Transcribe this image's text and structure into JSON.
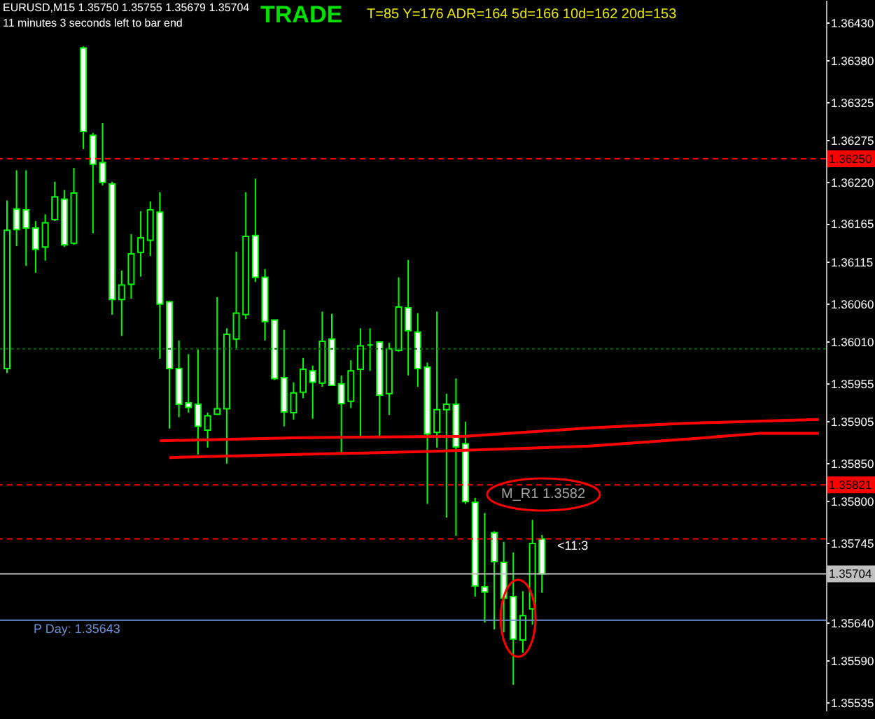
{
  "chart_data": {
    "type": "candlestick",
    "title": "EURUSD,M15  1.35750 1.35755 1.35679 1.35704",
    "subtitle": "11 minutes 3 seconds left to bar end",
    "annotations": [
      "TRADE",
      "T=85  Y=176  ADR=164  5d=166  10d=162  20d=153",
      "M_R1 1.3582",
      "<11:3"
    ],
    "color": "#00ff00",
    "categories": [
      null,
      null,
      null,
      null,
      null,
      null,
      null,
      null,
      null,
      null,
      null,
      null,
      null,
      null,
      null,
      null,
      null,
      null,
      null,
      null,
      null,
      null,
      null,
      null,
      null,
      null,
      null,
      null,
      null,
      null,
      null,
      null,
      null,
      null,
      null,
      null,
      null,
      null,
      null,
      null,
      null,
      null,
      null,
      null,
      null,
      null,
      null,
      null,
      null,
      null,
      null,
      null,
      null,
      null,
      null,
      null,
      null,
      null,
      null,
      null,
      null,
      null,
      null,
      null,
      null,
      null,
      null,
      null,
      null,
      null,
      null,
      null,
      null,
      null,
      null,
      null,
      null,
      null,
      null,
      null,
      null,
      null,
      null,
      null,
      null,
      null
    ],
    "ohlc": [
      [
        1.35974,
        1.36195,
        1.35968,
        1.36156
      ],
      [
        1.36184,
        1.36235,
        1.36135,
        1.36157
      ],
      [
        1.36183,
        1.36235,
        1.36109,
        1.36159
      ],
      [
        1.36159,
        1.36168,
        1.361,
        1.36131
      ],
      [
        1.36134,
        1.36177,
        1.36116,
        1.36166
      ],
      [
        1.3617,
        1.3622,
        1.36168,
        1.362
      ],
      [
        1.36197,
        1.36209,
        1.36134,
        1.36137
      ],
      [
        1.36139,
        1.36238,
        1.36137,
        1.36205
      ],
      [
        1.36396,
        1.36398,
        1.36263,
        1.36286
      ],
      [
        1.36281,
        1.36284,
        1.36152,
        1.36243
      ],
      [
        1.36245,
        1.36297,
        1.36215,
        1.36219
      ],
      [
        1.36217,
        1.3622,
        1.36045,
        1.36065
      ],
      [
        1.36065,
        1.36103,
        1.36017,
        1.36084
      ],
      [
        1.36085,
        1.36151,
        1.36066,
        1.36125
      ],
      [
        1.36127,
        1.36181,
        1.36095,
        1.36146
      ],
      [
        1.36143,
        1.36194,
        1.36122,
        1.36183
      ],
      [
        1.3618,
        1.36206,
        1.35987,
        1.36059
      ],
      [
        1.36062,
        1.36063,
        1.35895,
        1.35974
      ],
      [
        1.35974,
        1.36011,
        1.3591,
        1.35927
      ],
      [
        1.35929,
        1.35993,
        1.35916,
        1.35923
      ],
      [
        1.35927,
        1.35999,
        1.35861,
        1.35898
      ],
      [
        1.35893,
        1.35916,
        1.3587,
        1.35912
      ],
      [
        1.35914,
        1.36068,
        1.35913,
        1.35921
      ],
      [
        1.35921,
        1.36027,
        1.35849,
        1.36019
      ],
      [
        1.36013,
        1.36128,
        1.35999,
        1.36047
      ],
      [
        1.36045,
        1.36206,
        1.36039,
        1.36148
      ],
      [
        1.36149,
        1.36224,
        1.36088,
        1.36094
      ],
      [
        1.36094,
        1.36105,
        1.36011,
        1.36036
      ],
      [
        1.36038,
        1.36038,
        1.35959,
        1.35961
      ],
      [
        1.35962,
        1.36025,
        1.35898,
        1.35917
      ],
      [
        1.35916,
        1.35956,
        1.35907,
        1.35942
      ],
      [
        1.35943,
        1.35988,
        1.35935,
        1.35973
      ],
      [
        1.35971,
        1.35978,
        1.35908,
        1.35956
      ],
      [
        1.35955,
        1.36049,
        1.3595,
        1.3601
      ],
      [
        1.36013,
        1.36046,
        1.35951,
        1.35952
      ],
      [
        1.35954,
        1.35965,
        1.35861,
        1.35928
      ],
      [
        1.35931,
        1.35985,
        1.35922,
        1.35971
      ],
      [
        1.35973,
        1.36027,
        1.35882,
        1.36004
      ],
      [
        1.36005,
        1.36027,
        1.35971,
        1.36005
      ],
      [
        1.36009,
        1.36009,
        1.35885,
        1.35939
      ],
      [
        1.35941,
        1.36008,
        1.35913,
        1.36
      ],
      [
        1.35998,
        1.36094,
        1.35996,
        1.36055
      ],
      [
        1.36054,
        1.36117,
        1.35965,
        1.36024
      ],
      [
        1.36022,
        1.36047,
        1.3595,
        1.35974
      ],
      [
        1.35976,
        1.35982,
        1.35796,
        1.35888
      ],
      [
        1.3589,
        1.36049,
        1.3587,
        1.3592
      ],
      [
        1.3592,
        1.35941,
        1.35778,
        1.35927
      ],
      [
        1.35927,
        1.35961,
        1.35754,
        1.35871
      ],
      [
        1.35875,
        1.35904,
        1.35796,
        1.35799
      ],
      [
        1.35798,
        1.35804,
        1.35674,
        1.35688
      ],
      [
        1.35687,
        1.35784,
        1.3564,
        1.3568
      ],
      [
        1.35758,
        1.3576,
        1.35631,
        1.3572
      ],
      [
        1.35719,
        1.35746,
        1.35627,
        1.35672
      ],
      [
        1.35674,
        1.35732,
        1.35558,
        1.35618
      ],
      [
        1.35617,
        1.35681,
        1.356,
        1.35649
      ],
      [
        1.35658,
        1.35775,
        1.35637,
        1.35744
      ],
      [
        1.3575,
        1.35755,
        1.35679,
        1.35704
      ],
      null,
      null,
      null,
      null,
      null,
      null,
      null,
      null,
      null,
      null,
      null,
      null,
      null,
      null,
      null,
      null,
      null,
      null,
      null,
      null,
      null,
      null,
      null,
      null,
      null,
      null,
      null,
      null,
      null
    ],
    "series": [
      {
        "type": "line",
        "color": "#ff0000",
        "values": [
          null,
          null,
          null,
          null,
          null,
          null,
          null,
          null,
          null,
          null,
          null,
          null,
          null,
          null,
          null,
          null,
          1.35879,
          null,
          null,
          null,
          null,
          null,
          null,
          null,
          null,
          null,
          null,
          null,
          null,
          null,
          1.35883,
          null,
          null,
          null,
          null,
          null,
          null,
          null,
          null,
          null,
          null,
          null,
          null,
          null,
          null,
          null,
          null,
          null,
          1.35885,
          null,
          null,
          null,
          null,
          null,
          null,
          null,
          null,
          null,
          null,
          null,
          null,
          1.35896,
          null,
          null,
          null,
          null,
          null,
          null,
          null,
          null,
          null,
          1.35902,
          null,
          null,
          null,
          null,
          null,
          null,
          null,
          1.35905,
          null,
          null,
          null,
          null,
          null,
          1.35907
        ]
      },
      {
        "type": "line",
        "color": "#ff0000",
        "values": [
          null,
          null,
          null,
          null,
          null,
          null,
          null,
          null,
          null,
          null,
          null,
          null,
          null,
          null,
          null,
          null,
          null,
          1.35857,
          null,
          null,
          null,
          null,
          null,
          null,
          null,
          null,
          null,
          null,
          null,
          null,
          null,
          null,
          null,
          null,
          null,
          null,
          null,
          null,
          null,
          null,
          null,
          null,
          null,
          null,
          1.35865,
          null,
          null,
          null,
          null,
          null,
          null,
          null,
          null,
          null,
          null,
          null,
          null,
          null,
          null,
          null,
          null,
          1.35872,
          null,
          null,
          null,
          null,
          null,
          null,
          null,
          null,
          null,
          null,
          null,
          1.35883,
          null,
          null,
          null,
          null,
          null,
          1.35889,
          null,
          null,
          null,
          null,
          null,
          1.35889
        ]
      }
    ],
    "ylim": [
      1.35524,
      1.36459
    ],
    "yticks": [
      {
        "value": 1.3643,
        "label": "1.36430"
      },
      {
        "value": 1.3638,
        "label": "1.36380"
      },
      {
        "value": 1.36325,
        "label": "1.36325"
      },
      {
        "value": 1.36275,
        "label": "1.36275"
      },
      {
        "value": 1.3622,
        "label": "1.36220"
      },
      {
        "value": 1.36165,
        "label": "1.36165"
      },
      {
        "value": 1.36115,
        "label": "1.36115"
      },
      {
        "value": 1.3606,
        "label": "1.36060"
      },
      {
        "value": 1.3601,
        "label": "1.36010"
      },
      {
        "value": 1.35955,
        "label": "1.35955"
      },
      {
        "value": 1.35905,
        "label": "1.35905"
      },
      {
        "value": 1.3585,
        "label": "1.35850"
      },
      {
        "value": 1.358,
        "label": "1.35800"
      },
      {
        "value": 1.35745,
        "label": "1.35745"
      },
      {
        "value": 1.3564,
        "label": "1.35640"
      },
      {
        "value": 1.3559,
        "label": "1.35590"
      },
      {
        "value": 1.35535,
        "label": "1.35535"
      }
    ],
    "ref_lines": [
      {
        "axis": "y",
        "value": 1.3625,
        "label": "1.36250",
        "color": "#ff0000",
        "line_style": "dashed"
      },
      {
        "axis": "y",
        "value": 1.36,
        "color": "#006400",
        "line_style": "dotted"
      },
      {
        "axis": "y",
        "value": 1.35821,
        "label": "1.35821",
        "color": "#ff0000",
        "line_style": "dashed"
      },
      {
        "axis": "y",
        "value": 1.3575,
        "color": "#ff0000",
        "line_style": "dashed"
      },
      {
        "axis": "y",
        "value": 1.35704,
        "label": "1.35704",
        "color": "#c0c0c0",
        "line_style": "solid"
      },
      {
        "axis": "y",
        "value": 1.35643,
        "label": "P Day: 1.35643",
        "color": "#6a8fd4",
        "line_style": "solid"
      }
    ]
  }
}
